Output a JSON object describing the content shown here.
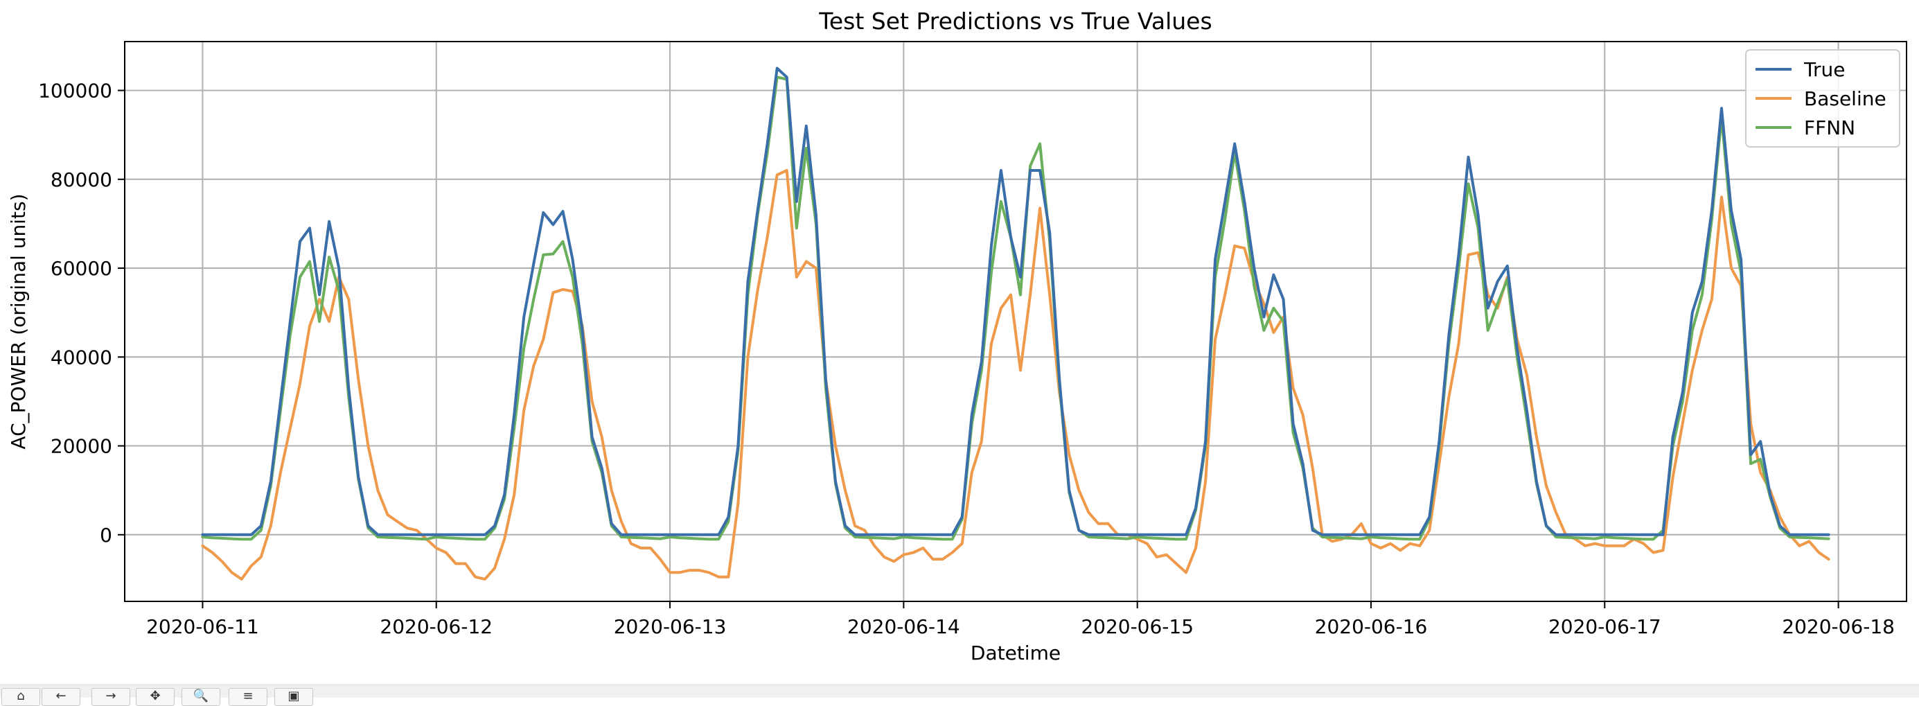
{
  "chart_data": {
    "type": "line",
    "title": "Test Set Predictions vs True Values",
    "xlabel": "Datetime",
    "ylabel": "AC_POWER (original units)",
    "x_tick_labels": [
      "2020-06-11",
      "2020-06-12",
      "2020-06-13",
      "2020-06-14",
      "2020-06-15",
      "2020-06-16",
      "2020-06-17",
      "2020-06-18"
    ],
    "y_tick_labels": [
      "0",
      "20000",
      "40000",
      "60000",
      "80000",
      "100000"
    ],
    "y_ticks": [
      0,
      20000,
      40000,
      60000,
      80000,
      100000
    ],
    "xlim": [
      "2020-06-10 16:00",
      "2020-06-18 07:00"
    ],
    "ylim": [
      -15000,
      111000
    ],
    "grid": true,
    "legend_position": "top-right",
    "x_start": "2020-06-11 00:00",
    "x_step_hours": 1,
    "series": [
      {
        "name": "True",
        "color": "#3a6ea8",
        "values": [
          0,
          0,
          0,
          0,
          0,
          0,
          2000,
          12000,
          30000,
          48000,
          66000,
          69000,
          54000,
          70500,
          60000,
          33000,
          13000,
          2000,
          0,
          0,
          0,
          0,
          0,
          0,
          0,
          0,
          0,
          0,
          0,
          0,
          2000,
          9000,
          27000,
          49000,
          61000,
          72500,
          69800,
          72800,
          62000,
          46000,
          22000,
          15000,
          2500,
          0,
          0,
          0,
          0,
          0,
          0,
          0,
          0,
          0,
          0,
          0,
          4000,
          20000,
          57000,
          73000,
          88000,
          105000,
          103000,
          75000,
          92000,
          72000,
          35000,
          12000,
          2000,
          0,
          0,
          0,
          0,
          0,
          0,
          0,
          0,
          0,
          0,
          0,
          4000,
          27000,
          39000,
          65000,
          82000,
          67000,
          58000,
          82000,
          82000,
          68000,
          35000,
          10000,
          1000,
          0,
          0,
          0,
          0,
          0,
          0,
          0,
          0,
          0,
          0,
          0,
          6000,
          21000,
          62000,
          75000,
          88000,
          75000,
          60000,
          49000,
          58500,
          53000,
          25000,
          16000,
          1000,
          0,
          0,
          0,
          0,
          0,
          0,
          0,
          0,
          0,
          0,
          0,
          4000,
          21000,
          45000,
          63000,
          85000,
          72000,
          51000,
          57000,
          60500,
          42000,
          28000,
          12000,
          2000,
          0,
          0,
          0,
          0,
          0,
          0,
          0,
          0,
          0,
          0,
          0,
          0,
          22000,
          32000,
          50000,
          57000,
          73000,
          96000,
          73000,
          62000,
          18000,
          21000,
          9000,
          2000,
          0,
          0,
          0,
          0,
          0
        ]
      },
      {
        "name": "Baseline",
        "color": "#ef9a4a",
        "values": [
          -2500,
          -4000,
          -6000,
          -8500,
          -10000,
          -7000,
          -5000,
          2000,
          14000,
          24000,
          34000,
          47000,
          53000,
          48000,
          58000,
          53000,
          35000,
          20000,
          10000,
          4500,
          3000,
          1500,
          1000,
          -1000,
          -3000,
          -4000,
          -6500,
          -6500,
          -9500,
          -10000,
          -7500,
          -1000,
          9000,
          28000,
          38000,
          44000,
          54500,
          55200,
          54800,
          47000,
          30000,
          22000,
          10000,
          3000,
          -2000,
          -3000,
          -3000,
          -5500,
          -8500,
          -8500,
          -8000,
          -8000,
          -8500,
          -9500,
          -9500,
          7000,
          40000,
          55000,
          67000,
          81000,
          82000,
          58000,
          61500,
          60000,
          35000,
          20000,
          10000,
          2000,
          1000,
          -2500,
          -5000,
          -6000,
          -4500,
          -4000,
          -3000,
          -5500,
          -5500,
          -4000,
          -2000,
          14000,
          21000,
          43000,
          51000,
          54000,
          37000,
          54000,
          73500,
          54000,
          32000,
          18000,
          10000,
          5000,
          2500,
          2500,
          0,
          0,
          -1000,
          -2000,
          -5000,
          -4500,
          -6500,
          -8500,
          -3000,
          12000,
          44000,
          54000,
          65000,
          64500,
          57000,
          52000,
          45500,
          49000,
          33000,
          27000,
          15000,
          0,
          -1500,
          -1000,
          0,
          2500,
          -2000,
          -3000,
          -2000,
          -3500,
          -2000,
          -2500,
          1000,
          16000,
          31000,
          43000,
          63000,
          63500,
          54000,
          51000,
          58000,
          44000,
          36000,
          22000,
          11000,
          5000,
          0,
          -1000,
          -2500,
          -2000,
          -2500,
          -2500,
          -2500,
          -1000,
          -2000,
          -4000,
          -3500,
          13000,
          25000,
          37000,
          46000,
          53000,
          76000,
          60000,
          56000,
          25000,
          14000,
          10000,
          4000,
          0,
          -2500,
          -1500,
          -4000,
          -5500
        ]
      },
      {
        "name": "FFNN",
        "color": "#6aaf5c",
        "values": [
          -500,
          -700,
          -800,
          -900,
          -1000,
          -1000,
          1000,
          11000,
          28000,
          45000,
          58000,
          61500,
          48000,
          62500,
          55000,
          31000,
          12500,
          1500,
          -500,
          -600,
          -700,
          -800,
          -900,
          -1000,
          -500,
          -700,
          -800,
          -900,
          -1000,
          -1000,
          1500,
          8000,
          24000,
          42000,
          53000,
          63000,
          63200,
          66000,
          58000,
          43000,
          21000,
          14000,
          2000,
          -500,
          -600,
          -700,
          -800,
          -900,
          -500,
          -700,
          -800,
          -900,
          -1000,
          -1000,
          3000,
          19000,
          54000,
          72000,
          86000,
          103000,
          102500,
          69000,
          87000,
          70000,
          33000,
          11500,
          1500,
          -500,
          -600,
          -700,
          -800,
          -900,
          -500,
          -700,
          -800,
          -900,
          -1000,
          -1000,
          3500,
          25000,
          37000,
          59000,
          75000,
          67000,
          54000,
          83000,
          88000,
          66000,
          34000,
          9500,
          1000,
          -500,
          -600,
          -700,
          -800,
          -900,
          -500,
          -700,
          -800,
          -900,
          -1000,
          -1000,
          5500,
          20000,
          58000,
          71000,
          86000,
          73000,
          56000,
          46000,
          51000,
          48000,
          23000,
          15000,
          1500,
          -500,
          -600,
          -700,
          -800,
          -900,
          -500,
          -700,
          -800,
          -900,
          -1000,
          -1000,
          3500,
          20000,
          43000,
          60000,
          79000,
          69000,
          46000,
          52000,
          57500,
          40000,
          26000,
          11500,
          2000,
          -500,
          -600,
          -700,
          -800,
          -900,
          -500,
          -700,
          -800,
          -900,
          -1000,
          -1000,
          1000,
          20000,
          30000,
          46000,
          54000,
          71000,
          94000,
          70000,
          59000,
          16000,
          17000,
          8500,
          1500,
          -500,
          -600,
          -700,
          -800,
          -900
        ]
      }
    ]
  },
  "toolbar": {
    "buttons": [
      "⌂",
      "←",
      "→",
      "✥",
      "🔍",
      "≡",
      "▣"
    ]
  }
}
